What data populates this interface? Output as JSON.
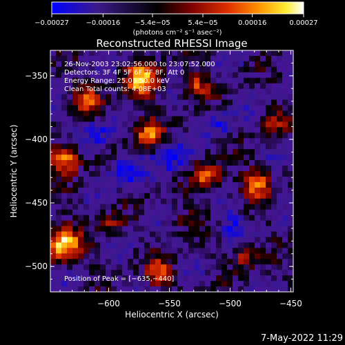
{
  "chart_data": {
    "type": "heatmap",
    "title": "Reconstructed RHESSI Image",
    "xlabel": "Heliocentric X (arcsec)",
    "ylabel": "Heliocentric Y (arcsec)",
    "xlim": [
      -648,
      -448
    ],
    "ylim": [
      -520,
      -330
    ],
    "x_ticks": [
      -600,
      -550,
      -500,
      -450
    ],
    "x_tick_labels": [
      "−600",
      "−550",
      "−500",
      "−450"
    ],
    "y_ticks": [
      -500,
      -450,
      -400,
      -350
    ],
    "y_tick_labels": [
      "−500",
      "−450",
      "−400",
      "−350"
    ],
    "colorbar": {
      "range": [
        -0.00027,
        0.00027
      ],
      "ticks": [
        -0.00027,
        -0.00016,
        -5.4e-05,
        5.4e-05,
        0.00016,
        0.00027
      ],
      "tick_labels": [
        "−0.00027",
        "−0.00016",
        "−5.4e−05",
        "5.4e−05",
        "0.00016",
        "0.00027"
      ],
      "unit_label": "(photons cm⁻² s⁻¹ asec⁻²)",
      "colormap": [
        "#0000ff",
        "#3c1a8c",
        "#000000",
        "#7a0000",
        "#e03000",
        "#ff9000",
        "#ffee30",
        "#ffffff"
      ]
    },
    "annotations": [
      "26-Nov-2003 23:02:56.000 to 23:07:52.000",
      "Detectors: 3F 4F 5F 6F 7F 8F, Att 0",
      "Energy Range: 25.0 - 50.0 keV",
      "Clean     Total counts: 4.08E+03"
    ],
    "peak_label": "Position of Peak = [−635,−440]",
    "peak_position": [
      -635,
      -440
    ],
    "grid": false
  },
  "footer": {
    "date_stamp": "7-May-2022 11:29"
  }
}
